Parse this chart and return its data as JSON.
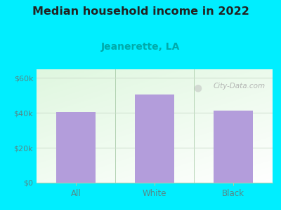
{
  "title": "Median household income in 2022",
  "subtitle": "Jeanerette, LA",
  "categories": [
    "All",
    "White",
    "Black"
  ],
  "values": [
    40500,
    50500,
    41500
  ],
  "bar_color": "#b39ddb",
  "title_fontsize": 11.5,
  "subtitle_fontsize": 10,
  "subtitle_color": "#00aaaa",
  "title_color": "#222222",
  "tick_color": "#558888",
  "ylim": [
    0,
    65000
  ],
  "yticks": [
    0,
    20000,
    40000,
    60000
  ],
  "ytick_labels": [
    "$0",
    "$20k",
    "$40k",
    "$60k"
  ],
  "background_outer": "#00eeff",
  "watermark": "City-Data.com",
  "bar_width": 0.5,
  "grid_color": "#ccddcc"
}
